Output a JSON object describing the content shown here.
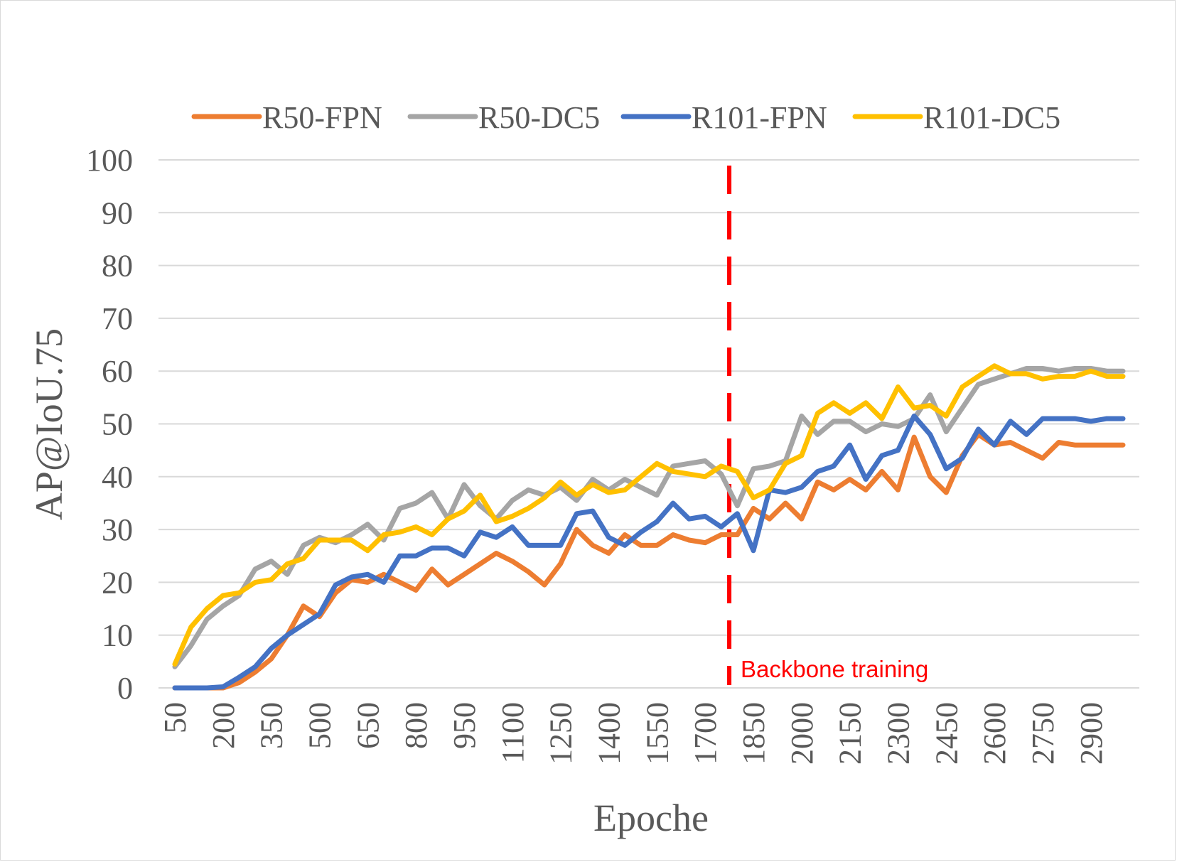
{
  "chart_data": {
    "type": "line",
    "xlabel": "Epoche",
    "ylabel": "AP@IoU.75",
    "ylim": [
      0,
      100
    ],
    "yticks": [
      0,
      10,
      20,
      30,
      40,
      50,
      60,
      70,
      80,
      90,
      100
    ],
    "x_tick_labels": [
      "50",
      "200",
      "350",
      "500",
      "650",
      "800",
      "950",
      "1100",
      "1250",
      "1400",
      "1550",
      "1700",
      "1850",
      "2000",
      "2150",
      "2300",
      "2450",
      "2600",
      "2750",
      "2900"
    ],
    "x": [
      50,
      100,
      150,
      200,
      250,
      300,
      350,
      400,
      450,
      500,
      550,
      600,
      650,
      700,
      750,
      800,
      850,
      900,
      950,
      1000,
      1050,
      1100,
      1150,
      1200,
      1250,
      1300,
      1350,
      1400,
      1450,
      1500,
      1550,
      1600,
      1650,
      1700,
      1750,
      1800,
      1850,
      1900,
      1950,
      2000,
      2050,
      2100,
      2150,
      2200,
      2250,
      2300,
      2350,
      2400,
      2450,
      2500,
      2550,
      2600,
      2650,
      2700,
      2750,
      2800,
      2850,
      2900,
      2950,
      3000
    ],
    "grid": true,
    "legend_position": "top",
    "series": [
      {
        "name": "R50-FPN",
        "color": "#ed7d31",
        "values": [
          0,
          0,
          0,
          0,
          1,
          3,
          5.5,
          10,
          15.5,
          13.5,
          18,
          20.5,
          20,
          21.5,
          20,
          18.5,
          22.5,
          19.5,
          21.5,
          23.5,
          25.5,
          24,
          22,
          19.5,
          23.5,
          30,
          27,
          25.5,
          29,
          27,
          27,
          29,
          28,
          27.5,
          29,
          29,
          34,
          32,
          35,
          32,
          39,
          37.5,
          39.5,
          37.5,
          41,
          37.5,
          47.5,
          40,
          37,
          44,
          48,
          46,
          46.5,
          45,
          43.5,
          46.5,
          46,
          46,
          46,
          46
        ]
      },
      {
        "name": "R50-DC5",
        "color": "#a5a5a5",
        "values": [
          4,
          8,
          13,
          15.5,
          17.5,
          22.5,
          24,
          21.5,
          27,
          28.5,
          27.5,
          29,
          31,
          28,
          34,
          35,
          37,
          32,
          38.5,
          34.5,
          32,
          35.5,
          37.5,
          36.5,
          38,
          35.5,
          39.5,
          37.5,
          39.5,
          38,
          36.5,
          42,
          42.5,
          43,
          40.5,
          34.5,
          41.5,
          42,
          43,
          51.5,
          48,
          50.5,
          50.5,
          48.5,
          50,
          49.5,
          51,
          55.5,
          48.5,
          53,
          57.5,
          58.5,
          59.5,
          60.5,
          60.5,
          60,
          60.5,
          60.5,
          60,
          60
        ]
      },
      {
        "name": "R101-FPN",
        "color": "#4472c4",
        "values": [
          0,
          0,
          0,
          0.2,
          2,
          4,
          7.5,
          10,
          12,
          14,
          19.5,
          21,
          21.5,
          20,
          25,
          25,
          26.5,
          26.5,
          25,
          29.5,
          28.5,
          30.5,
          27,
          27,
          27,
          33,
          33.5,
          28.5,
          27,
          29.5,
          31.5,
          35,
          32,
          32.5,
          30.5,
          33,
          26,
          37.5,
          37,
          38,
          41,
          42,
          46,
          39.5,
          44,
          45,
          51.5,
          48,
          41.5,
          43.5,
          49,
          46,
          50.5,
          48,
          51,
          51,
          51,
          50.5,
          51,
          51
        ]
      },
      {
        "name": "R101-DC5",
        "color": "#ffc000",
        "values": [
          4.5,
          11.5,
          15,
          17.5,
          18,
          20,
          20.5,
          23.5,
          24.5,
          28,
          28,
          28,
          26,
          29,
          29.5,
          30.5,
          29,
          32,
          33.5,
          36.5,
          31.5,
          32.5,
          34,
          36,
          39,
          36.5,
          38.5,
          37,
          37.5,
          40,
          42.5,
          41,
          40.5,
          40,
          42,
          41,
          36,
          37.5,
          42.5,
          44,
          52,
          54,
          52,
          54,
          51,
          57,
          53,
          53.5,
          51.5,
          57,
          59,
          61,
          59.5,
          59.5,
          58.5,
          59,
          59,
          60,
          59,
          59
        ]
      }
    ],
    "annotations": [
      {
        "type": "vertical-dashed-line",
        "x": 1775,
        "color": "#ff0000",
        "text": "Backbone training"
      }
    ]
  }
}
